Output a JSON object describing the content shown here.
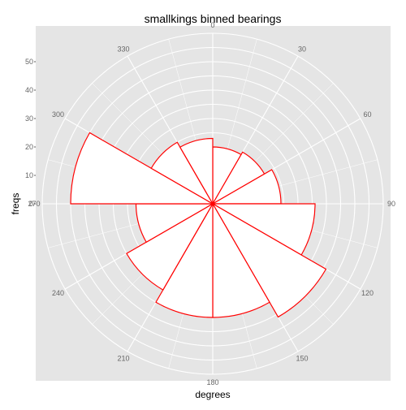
{
  "chart_data": {
    "type": "bar",
    "coord": "polar",
    "title": "smallkings binned bearings",
    "xlabel": "degrees",
    "ylabel": "freqs",
    "angle_ticks": [
      "0",
      "30",
      "60",
      "90",
      "120",
      "150",
      "180",
      "210",
      "240",
      "270",
      "300",
      "330"
    ],
    "radial_ticks": [
      "0",
      "10",
      "20",
      "30",
      "40",
      "50"
    ],
    "ylim": [
      0,
      60
    ],
    "bin_width_degrees": 30,
    "bins": [
      {
        "start": 0,
        "end": 30,
        "value": 20
      },
      {
        "start": 30,
        "end": 60,
        "value": 21
      },
      {
        "start": 60,
        "end": 90,
        "value": 24
      },
      {
        "start": 90,
        "end": 120,
        "value": 36
      },
      {
        "start": 120,
        "end": 150,
        "value": 46
      },
      {
        "start": 150,
        "end": 180,
        "value": 40
      },
      {
        "start": 180,
        "end": 210,
        "value": 40
      },
      {
        "start": 210,
        "end": 240,
        "value": 35
      },
      {
        "start": 240,
        "end": 270,
        "value": 27
      },
      {
        "start": 270,
        "end": 300,
        "value": 50
      },
      {
        "start": 300,
        "end": 330,
        "value": 25
      },
      {
        "start": 330,
        "end": 360,
        "value": 23
      }
    ],
    "bar_fill": "#ffffff",
    "bar_stroke": "#ff0000",
    "panel_color": "#e5e5e5",
    "grid_color": "#ffffff"
  }
}
